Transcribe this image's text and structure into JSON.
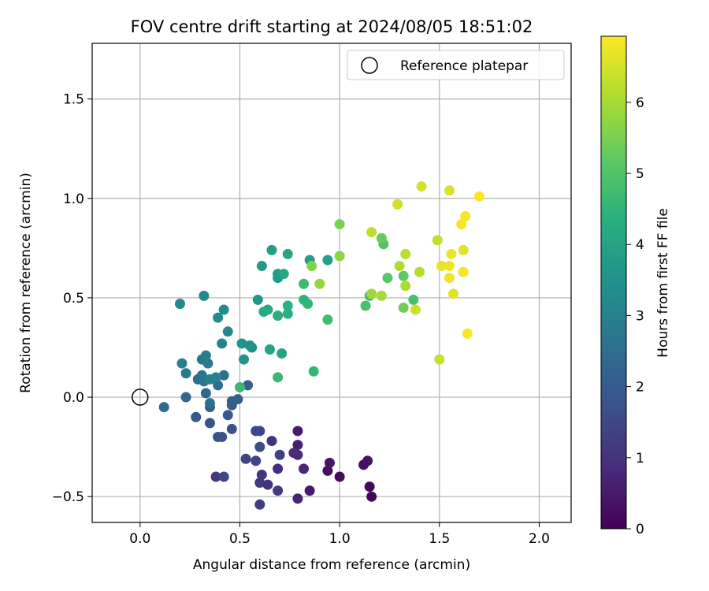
{
  "chart_data": {
    "type": "scatter",
    "title": "FOV centre drift starting at 2024/08/05 18:51:02",
    "xlabel": "Angular distance from reference (arcmin)",
    "ylabel": "Rotation from reference (arcmin)",
    "xlim": [
      -0.24,
      2.16
    ],
    "ylim": [
      -0.63,
      1.78
    ],
    "xticks": [
      0.0,
      0.5,
      1.0,
      1.5,
      2.0
    ],
    "xtick_labels": [
      "0.0",
      "0.5",
      "1.0",
      "1.5",
      "2.0"
    ],
    "yticks": [
      -0.5,
      0.0,
      0.5,
      1.0,
      1.5
    ],
    "ytick_labels": [
      "−0.5",
      "0.0",
      "0.5",
      "1.0",
      "1.5"
    ],
    "grid": true,
    "legend": {
      "position": "top-right",
      "entries": [
        "Reference platepar"
      ]
    },
    "reference_point": {
      "x": 0.0,
      "y": 0.0
    },
    "colorbar": {
      "label": "Hours from first FF file",
      "range": [
        0,
        6.93
      ],
      "ticks": [
        0,
        1,
        2,
        3,
        4,
        5,
        6
      ],
      "tick_labels": [
        "0",
        "1",
        "2",
        "3",
        "4",
        "5",
        "6"
      ],
      "colormap": "viridis"
    },
    "points": [
      {
        "x": 1.16,
        "y": -0.5,
        "h": 0.1
      },
      {
        "x": 1.15,
        "y": -0.45,
        "h": 0.15
      },
      {
        "x": 1.0,
        "y": -0.4,
        "h": 0.2
      },
      {
        "x": 0.94,
        "y": -0.37,
        "h": 0.25
      },
      {
        "x": 1.12,
        "y": -0.34,
        "h": 0.3
      },
      {
        "x": 1.14,
        "y": -0.32,
        "h": 0.35
      },
      {
        "x": 0.95,
        "y": -0.33,
        "h": 0.4
      },
      {
        "x": 0.85,
        "y": -0.47,
        "h": 0.5
      },
      {
        "x": 0.79,
        "y": -0.17,
        "h": 0.55
      },
      {
        "x": 0.79,
        "y": -0.24,
        "h": 0.6
      },
      {
        "x": 0.79,
        "y": -0.51,
        "h": 0.7
      },
      {
        "x": 0.82,
        "y": -0.36,
        "h": 0.75
      },
      {
        "x": 0.79,
        "y": -0.29,
        "h": 0.8
      },
      {
        "x": 0.77,
        "y": -0.28,
        "h": 0.85
      },
      {
        "x": 0.69,
        "y": -0.36,
        "h": 0.9
      },
      {
        "x": 0.66,
        "y": -0.22,
        "h": 0.95
      },
      {
        "x": 0.64,
        "y": -0.44,
        "h": 1.0
      },
      {
        "x": 0.61,
        "y": -0.39,
        "h": 1.05
      },
      {
        "x": 0.38,
        "y": -0.4,
        "h": 1.1
      },
      {
        "x": 0.6,
        "y": -0.43,
        "h": 1.15
      },
      {
        "x": 0.69,
        "y": -0.47,
        "h": 1.2
      },
      {
        "x": 0.6,
        "y": -0.54,
        "h": 1.25
      },
      {
        "x": 0.7,
        "y": -0.29,
        "h": 1.3
      },
      {
        "x": 0.53,
        "y": -0.31,
        "h": 1.35
      },
      {
        "x": 0.58,
        "y": -0.32,
        "h": 1.4
      },
      {
        "x": 0.42,
        "y": -0.4,
        "h": 1.45
      },
      {
        "x": 0.6,
        "y": -0.17,
        "h": 1.5
      },
      {
        "x": 0.58,
        "y": -0.17,
        "h": 1.55
      },
      {
        "x": 0.6,
        "y": -0.25,
        "h": 1.6
      },
      {
        "x": 0.46,
        "y": -0.16,
        "h": 1.7
      },
      {
        "x": 0.39,
        "y": -0.2,
        "h": 1.75
      },
      {
        "x": 0.41,
        "y": -0.2,
        "h": 1.8
      },
      {
        "x": 0.35,
        "y": -0.13,
        "h": 1.85
      },
      {
        "x": 0.28,
        "y": -0.1,
        "h": 1.9
      },
      {
        "x": 0.44,
        "y": -0.09,
        "h": 1.95
      },
      {
        "x": 0.46,
        "y": -0.04,
        "h": 2.0
      },
      {
        "x": 0.46,
        "y": -0.02,
        "h": 2.05
      },
      {
        "x": 0.49,
        "y": -0.01,
        "h": 2.1
      },
      {
        "x": 0.54,
        "y": 0.06,
        "h": 2.15
      },
      {
        "x": 0.35,
        "y": -0.05,
        "h": 2.2
      },
      {
        "x": 0.23,
        "y": 0.0,
        "h": 2.3
      },
      {
        "x": 0.33,
        "y": 0.02,
        "h": 2.35
      },
      {
        "x": 0.12,
        "y": -0.05,
        "h": 2.4
      },
      {
        "x": 0.29,
        "y": 0.09,
        "h": 2.45
      },
      {
        "x": 0.35,
        "y": -0.03,
        "h": 2.5
      },
      {
        "x": 0.39,
        "y": 0.06,
        "h": 2.55
      },
      {
        "x": 0.42,
        "y": 0.11,
        "h": 2.6
      },
      {
        "x": 0.31,
        "y": 0.11,
        "h": 2.65
      },
      {
        "x": 0.32,
        "y": 0.08,
        "h": 2.7
      },
      {
        "x": 0.23,
        "y": 0.12,
        "h": 2.75
      },
      {
        "x": 0.31,
        "y": 0.19,
        "h": 2.8
      },
      {
        "x": 0.34,
        "y": 0.17,
        "h": 2.85
      },
      {
        "x": 0.33,
        "y": 0.21,
        "h": 2.9
      },
      {
        "x": 0.21,
        "y": 0.17,
        "h": 2.95
      },
      {
        "x": 0.35,
        "y": 0.09,
        "h": 3.0
      },
      {
        "x": 0.38,
        "y": 0.1,
        "h": 3.05
      },
      {
        "x": 0.41,
        "y": 0.27,
        "h": 3.1
      },
      {
        "x": 0.44,
        "y": 0.33,
        "h": 3.15
      },
      {
        "x": 0.2,
        "y": 0.47,
        "h": 3.2
      },
      {
        "x": 0.32,
        "y": 0.51,
        "h": 3.25
      },
      {
        "x": 0.39,
        "y": 0.4,
        "h": 3.3
      },
      {
        "x": 0.42,
        "y": 0.44,
        "h": 3.35
      },
      {
        "x": 0.56,
        "y": 0.25,
        "h": 3.45
      },
      {
        "x": 0.55,
        "y": 0.26,
        "h": 3.5
      },
      {
        "x": 0.52,
        "y": 0.19,
        "h": 3.55
      },
      {
        "x": 0.51,
        "y": 0.27,
        "h": 3.6
      },
      {
        "x": 0.59,
        "y": 0.49,
        "h": 3.65
      },
      {
        "x": 0.61,
        "y": 0.66,
        "h": 3.7
      },
      {
        "x": 0.69,
        "y": 0.6,
        "h": 3.75
      },
      {
        "x": 0.69,
        "y": 0.62,
        "h": 3.8
      },
      {
        "x": 0.66,
        "y": 0.74,
        "h": 3.85
      },
      {
        "x": 0.85,
        "y": 0.69,
        "h": 3.9
      },
      {
        "x": 0.94,
        "y": 0.69,
        "h": 3.95
      },
      {
        "x": 0.65,
        "y": 0.24,
        "h": 4.0
      },
      {
        "x": 0.71,
        "y": 0.22,
        "h": 4.05
      },
      {
        "x": 0.74,
        "y": 0.72,
        "h": 4.1
      },
      {
        "x": 0.72,
        "y": 0.62,
        "h": 4.15
      },
      {
        "x": 0.64,
        "y": 0.44,
        "h": 4.2
      },
      {
        "x": 0.62,
        "y": 0.43,
        "h": 4.25
      },
      {
        "x": 0.69,
        "y": 0.41,
        "h": 4.3
      },
      {
        "x": 0.74,
        "y": 0.42,
        "h": 4.35
      },
      {
        "x": 0.74,
        "y": 0.46,
        "h": 4.4
      },
      {
        "x": 0.82,
        "y": 0.49,
        "h": 4.45
      },
      {
        "x": 0.84,
        "y": 0.47,
        "h": 4.5
      },
      {
        "x": 0.87,
        "y": 0.13,
        "h": 4.55
      },
      {
        "x": 0.69,
        "y": 0.1,
        "h": 4.6
      },
      {
        "x": 0.5,
        "y": 0.05,
        "h": 4.65
      },
      {
        "x": 0.82,
        "y": 0.57,
        "h": 4.7
      },
      {
        "x": 0.94,
        "y": 0.39,
        "h": 4.75
      },
      {
        "x": 1.15,
        "y": 0.51,
        "h": 4.8
      },
      {
        "x": 1.37,
        "y": 0.49,
        "h": 4.85
      },
      {
        "x": 1.13,
        "y": 0.46,
        "h": 4.9
      },
      {
        "x": 1.22,
        "y": 0.77,
        "h": 5.0
      },
      {
        "x": 1.24,
        "y": 0.6,
        "h": 5.1
      },
      {
        "x": 1.32,
        "y": 0.61,
        "h": 5.2
      },
      {
        "x": 1.21,
        "y": 0.8,
        "h": 5.3
      },
      {
        "x": 1.32,
        "y": 0.45,
        "h": 5.4
      },
      {
        "x": 1.0,
        "y": 0.87,
        "h": 5.5
      },
      {
        "x": 0.86,
        "y": 0.66,
        "h": 5.6
      },
      {
        "x": 1.0,
        "y": 0.71,
        "h": 5.7
      },
      {
        "x": 0.9,
        "y": 0.57,
        "h": 5.8
      },
      {
        "x": 1.16,
        "y": 0.52,
        "h": 5.9
      },
      {
        "x": 1.21,
        "y": 0.51,
        "h": 6.0
      },
      {
        "x": 1.33,
        "y": 0.56,
        "h": 6.05
      },
      {
        "x": 1.3,
        "y": 0.66,
        "h": 6.1
      },
      {
        "x": 1.4,
        "y": 0.63,
        "h": 6.15
      },
      {
        "x": 1.33,
        "y": 0.72,
        "h": 6.2
      },
      {
        "x": 1.16,
        "y": 0.83,
        "h": 6.25
      },
      {
        "x": 1.49,
        "y": 0.79,
        "h": 6.3
      },
      {
        "x": 1.5,
        "y": 0.19,
        "h": 6.35
      },
      {
        "x": 1.38,
        "y": 0.44,
        "h": 6.4
      },
      {
        "x": 1.29,
        "y": 0.97,
        "h": 6.45
      },
      {
        "x": 1.41,
        "y": 1.06,
        "h": 6.5
      },
      {
        "x": 1.55,
        "y": 1.04,
        "h": 6.55
      },
      {
        "x": 1.62,
        "y": 0.74,
        "h": 6.6
      },
      {
        "x": 1.57,
        "y": 0.52,
        "h": 6.65
      },
      {
        "x": 1.51,
        "y": 0.66,
        "h": 6.7
      },
      {
        "x": 1.56,
        "y": 0.72,
        "h": 6.75
      },
      {
        "x": 1.55,
        "y": 0.66,
        "h": 6.78
      },
      {
        "x": 1.55,
        "y": 0.6,
        "h": 6.8
      },
      {
        "x": 1.62,
        "y": 0.63,
        "h": 6.82
      },
      {
        "x": 1.61,
        "y": 0.87,
        "h": 6.85
      },
      {
        "x": 1.63,
        "y": 0.91,
        "h": 6.87
      },
      {
        "x": 1.64,
        "y": 0.32,
        "h": 6.9
      },
      {
        "x": 1.7,
        "y": 1.01,
        "h": 6.93
      }
    ]
  }
}
